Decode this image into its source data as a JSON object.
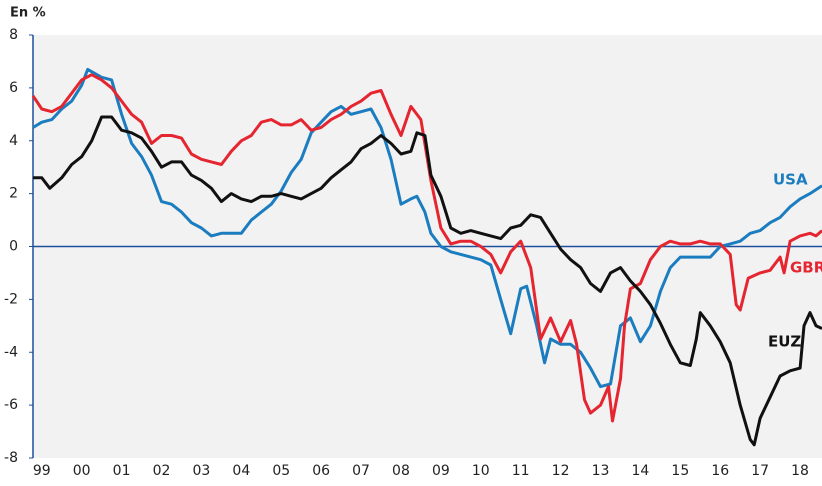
{
  "chart_data": {
    "type": "line",
    "ylabel": "En %",
    "xlim": [
      1998.78,
      2018.55
    ],
    "xticks": [
      {
        "value": 1999,
        "label": "99"
      },
      {
        "value": 2000,
        "label": "00"
      },
      {
        "value": 2001,
        "label": "01"
      },
      {
        "value": 2002,
        "label": "02"
      },
      {
        "value": 2003,
        "label": "03"
      },
      {
        "value": 2004,
        "label": "04"
      },
      {
        "value": 2005,
        "label": "05"
      },
      {
        "value": 2006,
        "label": "06"
      },
      {
        "value": 2007,
        "label": "07"
      },
      {
        "value": 2008,
        "label": "08"
      },
      {
        "value": 2009,
        "label": "09"
      },
      {
        "value": 2010,
        "label": "10"
      },
      {
        "value": 2011,
        "label": "11"
      },
      {
        "value": 2012,
        "label": "12"
      },
      {
        "value": 2013,
        "label": "13"
      },
      {
        "value": 2014,
        "label": "14"
      },
      {
        "value": 2015,
        "label": "15"
      },
      {
        "value": 2016,
        "label": "16"
      },
      {
        "value": 2017,
        "label": "17"
      },
      {
        "value": 2018,
        "label": "18"
      }
    ],
    "ylim": [
      -8,
      8
    ],
    "yticks": [
      -8,
      -6,
      -4,
      -2,
      0,
      2,
      4,
      6,
      8
    ],
    "series": [
      {
        "name": "USA",
        "color": "#1b7dc0",
        "x": [
          1998.78,
          1999,
          1999.25,
          1999.5,
          1999.75,
          2000,
          2000.15,
          2000.5,
          2000.75,
          2001,
          2001.25,
          2001.5,
          2001.75,
          2002,
          2002.25,
          2002.5,
          2002.75,
          2003,
          2003.25,
          2003.5,
          2003.75,
          2004,
          2004.25,
          2004.5,
          2004.75,
          2005,
          2005.25,
          2005.5,
          2005.75,
          2006,
          2006.25,
          2006.5,
          2006.75,
          2007,
          2007.25,
          2007.5,
          2007.75,
          2008,
          2008.25,
          2008.4,
          2008.6,
          2008.75,
          2009,
          2009.25,
          2009.5,
          2009.75,
          2010,
          2010.25,
          2010.5,
          2010.75,
          2011,
          2011.15,
          2011.4,
          2011.6,
          2011.75,
          2012,
          2012.25,
          2012.5,
          2012.75,
          2013,
          2013.25,
          2013.5,
          2013.75,
          2014,
          2014.25,
          2014.5,
          2014.75,
          2015,
          2015.25,
          2015.5,
          2015.75,
          2016,
          2016.25,
          2016.5,
          2016.75,
          2017,
          2017.25,
          2017.5,
          2017.75,
          2018,
          2018.25,
          2018.55
        ],
        "values": [
          4.5,
          4.7,
          4.8,
          5.2,
          5.5,
          6.1,
          6.7,
          6.4,
          6.3,
          5.0,
          3.9,
          3.4,
          2.7,
          1.7,
          1.6,
          1.3,
          0.9,
          0.7,
          0.4,
          0.5,
          0.5,
          0.5,
          1.0,
          1.3,
          1.6,
          2.1,
          2.8,
          3.3,
          4.3,
          4.7,
          5.1,
          5.3,
          5.0,
          5.1,
          5.2,
          4.5,
          3.3,
          1.6,
          1.8,
          1.9,
          1.3,
          0.5,
          0.0,
          -0.2,
          -0.3,
          -0.4,
          -0.5,
          -0.7,
          -2.0,
          -3.3,
          -1.6,
          -1.5,
          -3.0,
          -4.4,
          -3.5,
          -3.7,
          -3.7,
          -4.0,
          -4.6,
          -5.3,
          -5.2,
          -3.0,
          -2.7,
          -3.6,
          -3.0,
          -1.7,
          -0.8,
          -0.4,
          -0.4,
          -0.4,
          -0.4,
          0.0,
          0.1,
          0.2,
          0.5,
          0.6,
          0.9,
          1.1,
          1.5,
          1.8,
          2.0,
          2.3
        ]
      },
      {
        "name": "GBR",
        "color": "#e52630",
        "x": [
          1998.78,
          1999,
          1999.25,
          1999.5,
          1999.75,
          2000,
          2000.25,
          2000.5,
          2000.75,
          2001,
          2001.25,
          2001.5,
          2001.75,
          2002,
          2002.25,
          2002.5,
          2002.75,
          2003,
          2003.25,
          2003.5,
          2003.75,
          2004,
          2004.25,
          2004.5,
          2004.75,
          2005,
          2005.25,
          2005.5,
          2005.75,
          2006,
          2006.25,
          2006.5,
          2006.75,
          2007,
          2007.25,
          2007.5,
          2007.75,
          2008,
          2008.25,
          2008.5,
          2008.75,
          2009,
          2009.25,
          2009.5,
          2009.75,
          2010,
          2010.25,
          2010.5,
          2010.75,
          2011,
          2011.25,
          2011.5,
          2011.75,
          2012,
          2012.25,
          2012.4,
          2012.6,
          2012.75,
          2013,
          2013.2,
          2013.3,
          2013.5,
          2013.6,
          2013.75,
          2014,
          2014.25,
          2014.5,
          2014.75,
          2015,
          2015.25,
          2015.5,
          2015.75,
          2016,
          2016.25,
          2016.4,
          2016.5,
          2016.7,
          2017,
          2017.25,
          2017.5,
          2017.6,
          2017.75,
          2018,
          2018.25,
          2018.4,
          2018.55
        ],
        "values": [
          5.7,
          5.2,
          5.1,
          5.3,
          5.8,
          6.3,
          6.5,
          6.3,
          6.0,
          5.5,
          5.0,
          4.7,
          3.9,
          4.2,
          4.2,
          4.1,
          3.5,
          3.3,
          3.2,
          3.1,
          3.6,
          4.0,
          4.2,
          4.7,
          4.8,
          4.6,
          4.6,
          4.8,
          4.4,
          4.5,
          4.8,
          5.0,
          5.3,
          5.5,
          5.8,
          5.9,
          5.0,
          4.2,
          5.3,
          4.8,
          2.5,
          0.7,
          0.1,
          0.2,
          0.2,
          0.0,
          -0.3,
          -1.0,
          -0.2,
          0.2,
          -0.8,
          -3.5,
          -2.7,
          -3.6,
          -2.8,
          -3.7,
          -5.8,
          -6.3,
          -6.0,
          -5.3,
          -6.6,
          -5.0,
          -3.0,
          -1.6,
          -1.4,
          -0.5,
          0.0,
          0.2,
          0.1,
          0.1,
          0.2,
          0.1,
          0.1,
          -0.3,
          -2.2,
          -2.4,
          -1.2,
          -1.0,
          -0.9,
          -0.4,
          -1.0,
          0.2,
          0.4,
          0.5,
          0.4,
          0.6
        ]
      },
      {
        "name": "EUZ",
        "color": "#111111",
        "x": [
          1998.78,
          1999,
          1999.2,
          1999.5,
          1999.75,
          2000,
          2000.25,
          2000.5,
          2000.75,
          2001,
          2001.25,
          2001.5,
          2001.75,
          2002,
          2002.25,
          2002.5,
          2002.75,
          2003,
          2003.25,
          2003.5,
          2003.75,
          2004,
          2004.25,
          2004.5,
          2004.75,
          2005,
          2005.25,
          2005.5,
          2005.75,
          2006,
          2006.25,
          2006.5,
          2006.75,
          2007,
          2007.25,
          2007.5,
          2007.75,
          2008,
          2008.25,
          2008.4,
          2008.6,
          2008.75,
          2009,
          2009.25,
          2009.5,
          2009.75,
          2010,
          2010.25,
          2010.5,
          2010.75,
          2011,
          2011.25,
          2011.5,
          2011.75,
          2012,
          2012.25,
          2012.5,
          2012.75,
          2013,
          2013.25,
          2013.5,
          2013.75,
          2014,
          2014.25,
          2014.5,
          2014.75,
          2015,
          2015.25,
          2015.4,
          2015.5,
          2015.75,
          2016,
          2016.25,
          2016.5,
          2016.75,
          2016.85,
          2017,
          2017.25,
          2017.5,
          2017.75,
          2018,
          2018.1,
          2018.25,
          2018.4,
          2018.55
        ],
        "values": [
          2.6,
          2.6,
          2.2,
          2.6,
          3.1,
          3.4,
          4.0,
          4.9,
          4.9,
          4.4,
          4.3,
          4.1,
          3.6,
          3.0,
          3.2,
          3.2,
          2.7,
          2.5,
          2.2,
          1.7,
          2.0,
          1.8,
          1.7,
          1.9,
          1.9,
          2.0,
          1.9,
          1.8,
          2.0,
          2.2,
          2.6,
          2.9,
          3.2,
          3.7,
          3.9,
          4.2,
          3.9,
          3.5,
          3.6,
          4.3,
          4.2,
          2.7,
          1.9,
          0.7,
          0.5,
          0.6,
          0.5,
          0.4,
          0.3,
          0.7,
          0.8,
          1.2,
          1.1,
          0.5,
          -0.1,
          -0.5,
          -0.8,
          -1.4,
          -1.7,
          -1.0,
          -0.8,
          -1.3,
          -1.7,
          -2.2,
          -2.9,
          -3.7,
          -4.4,
          -4.5,
          -3.5,
          -2.5,
          -3.0,
          -3.6,
          -4.4,
          -6.0,
          -7.3,
          -7.5,
          -6.5,
          -5.7,
          -4.9,
          -4.7,
          -4.6,
          -3.0,
          -2.5,
          -3.0,
          -3.1
        ]
      }
    ]
  }
}
